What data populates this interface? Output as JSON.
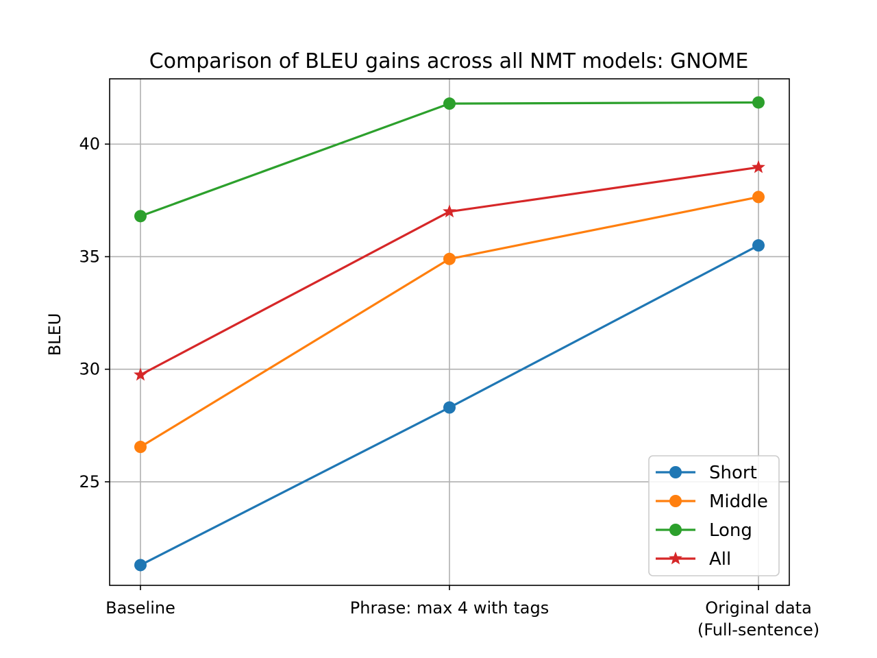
{
  "chart_data": {
    "type": "line",
    "title": "Comparison of BLEU gains across all NMT models: GNOME",
    "xlabel": "",
    "ylabel": "BLEU",
    "categories": [
      "Baseline",
      "Phrase: max 4 with tags",
      "Original data\n(Full-sentence)"
    ],
    "ylim": [
      20.4,
      42.9
    ],
    "yticks": [
      25,
      30,
      35,
      40
    ],
    "grid": true,
    "legend_position": "bottom-right",
    "series": [
      {
        "name": "Short",
        "values": [
          21.3,
          28.3,
          35.5
        ],
        "color": "#1f77b4",
        "marker": "circle"
      },
      {
        "name": "Middle",
        "values": [
          26.55,
          34.9,
          37.65
        ],
        "color": "#ff7f0e",
        "marker": "circle"
      },
      {
        "name": "Long",
        "values": [
          36.8,
          41.8,
          41.85
        ],
        "color": "#2ca02c",
        "marker": "circle"
      },
      {
        "name": "All",
        "values": [
          29.75,
          37.0,
          38.97
        ],
        "color": "#d62728",
        "marker": "star"
      }
    ]
  }
}
